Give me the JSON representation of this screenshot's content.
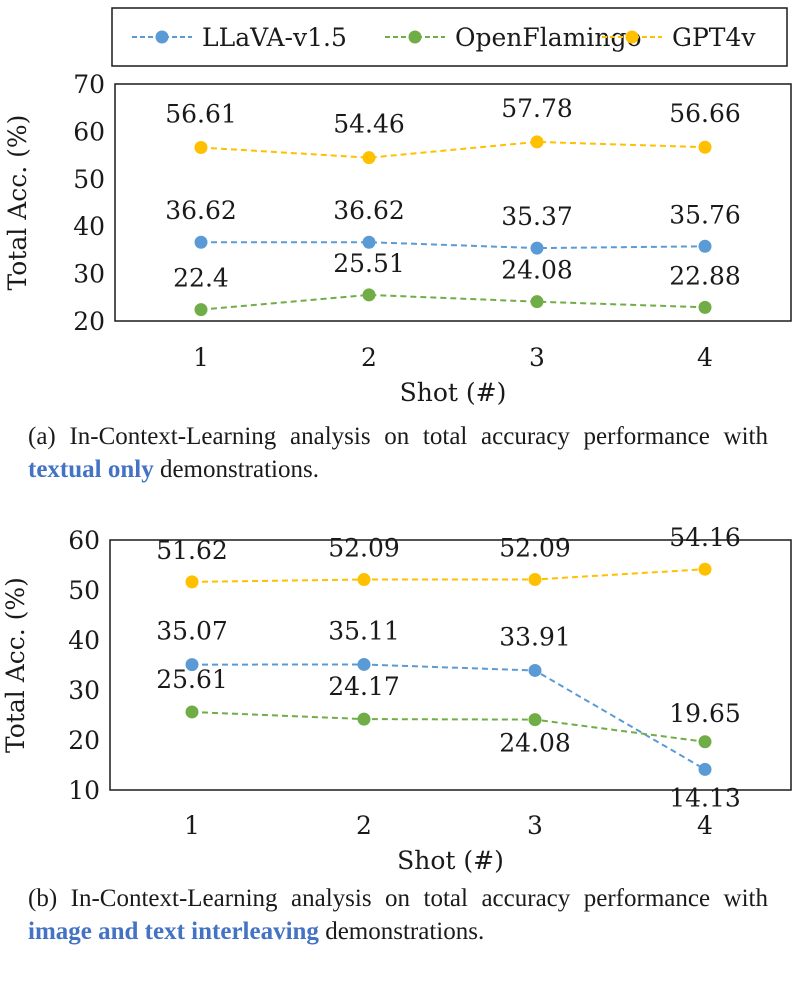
{
  "legend": [
    {
      "name": "LLaVA-v1.5",
      "color": "#5b9bd5"
    },
    {
      "name": "OpenFlamingo",
      "color": "#70ad47"
    },
    {
      "name": "GPT4v",
      "color": "#ffc000"
    }
  ],
  "chart_data": [
    {
      "type": "line",
      "x": [
        "1",
        "2",
        "3",
        "4"
      ],
      "xlabel": "Shot (#)",
      "ylabel": "Total Acc. (%)",
      "ylim": [
        20,
        70
      ],
      "yticks": [
        "20",
        "30",
        "40",
        "50",
        "60",
        "70"
      ],
      "grid": false,
      "series": [
        {
          "name": "LLaVA-v1.5",
          "color": "#5b9bd5",
          "values": [
            36.62,
            36.62,
            35.37,
            35.76
          ]
        },
        {
          "name": "OpenFlamingo",
          "color": "#70ad47",
          "values": [
            22.4,
            25.51,
            24.08,
            22.88
          ]
        },
        {
          "name": "GPT4v",
          "color": "#ffc000",
          "values": [
            56.61,
            54.46,
            57.78,
            56.66
          ]
        }
      ]
    },
    {
      "type": "line",
      "x": [
        "1",
        "2",
        "3",
        "4"
      ],
      "xlabel": "Shot (#)",
      "ylabel": "Total Acc. (%)",
      "ylim": [
        10,
        60
      ],
      "yticks": [
        "10",
        "20",
        "30",
        "40",
        "50",
        "60"
      ],
      "grid": false,
      "series": [
        {
          "name": "LLaVA-v1.5",
          "color": "#5b9bd5",
          "values": [
            35.07,
            35.11,
            33.91,
            14.13
          ]
        },
        {
          "name": "OpenFlamingo",
          "color": "#70ad47",
          "values": [
            25.61,
            24.17,
            24.08,
            19.65
          ]
        },
        {
          "name": "GPT4v",
          "color": "#ffc000",
          "values": [
            51.62,
            52.09,
            52.09,
            54.16
          ]
        }
      ]
    }
  ],
  "captions": {
    "a": {
      "prefix": "(a)  In-Context-Learning analysis on total accuracy performance with",
      "highlight": "textual only",
      "suffix": "demonstrations."
    },
    "b": {
      "prefix": "(b)  In-Context-Learning analysis on total accuracy performance with",
      "highlight": "image and text interleaving",
      "suffix": "demonstrations."
    }
  }
}
